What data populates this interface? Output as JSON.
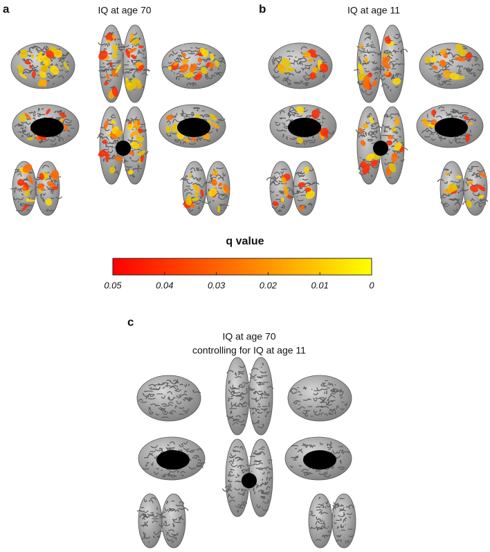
{
  "panels": [
    {
      "label": "a",
      "title": "IQ at age 70"
    },
    {
      "label": "b",
      "title": "IQ at age 11"
    },
    {
      "label": "c",
      "title": "IQ at age 70",
      "subtitle": "controlling for IQ at age 11"
    }
  ],
  "colorbar": {
    "title": "q value",
    "lim": [
      0.05,
      0
    ],
    "ticks": [
      0.05,
      0.04,
      0.03,
      0.02,
      0.01,
      0
    ],
    "colors": [
      "#ff0000",
      "#ff7a00",
      "#ffff00"
    ]
  }
}
